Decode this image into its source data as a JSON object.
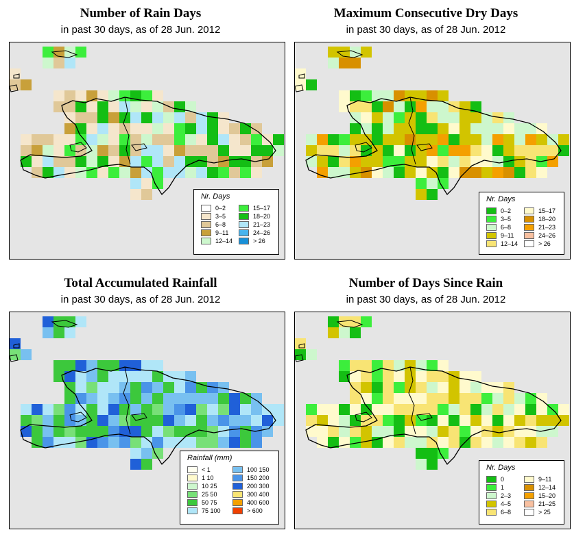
{
  "panels": [
    {
      "id": "rain-days",
      "title": "Number of Rain Days",
      "subtitle": "in past 30 days, as of  28 Jun. 2012",
      "legend_title": "Nr. Days",
      "legend": [
        {
          "label": "0–2",
          "color": "#ffffff"
        },
        {
          "label": "3–5",
          "color": "#f5e6cc"
        },
        {
          "label": "6–8",
          "color": "#e0c898"
        },
        {
          "label": "9–11",
          "color": "#c8a03a"
        },
        {
          "label": "12–14",
          "color": "#cdf7cd"
        },
        {
          "label": "15–17",
          "color": "#3cee3c"
        },
        {
          "label": "18–20",
          "color": "#14be14"
        },
        {
          "label": "21–23",
          "color": "#b0e6f8"
        },
        {
          "label": "24–26",
          "color": "#48b4ee"
        },
        {
          "label": "> 26",
          "color": "#1890d8"
        }
      ]
    },
    {
      "id": "dry-days",
      "title": "Maximum Consecutive Dry Days",
      "subtitle": "in past 30 days, as of  28 Jun. 2012",
      "legend_title": "Nr. Days",
      "legend": [
        {
          "label": "0–2",
          "color": "#14be14"
        },
        {
          "label": "3–5",
          "color": "#3cee3c"
        },
        {
          "label": "6–8",
          "color": "#cdf7cd"
        },
        {
          "label": "9–11",
          "color": "#d2c400"
        },
        {
          "label": "12–14",
          "color": "#f8e474"
        },
        {
          "label": "15–17",
          "color": "#fffacd"
        },
        {
          "label": "18–20",
          "color": "#d89000"
        },
        {
          "label": "21–23",
          "color": "#f4a000"
        },
        {
          "label": "24–26",
          "color": "#f8c0a0"
        },
        {
          "label": "> 26",
          "color": "#ffffff"
        }
      ]
    },
    {
      "id": "rainfall",
      "title": "Total Accumulated Rainfall",
      "subtitle": "in past 30 days, as of  28 Jun. 2012",
      "legend_title": "Rainfall (mm)",
      "legend": [
        {
          "label": "< 1",
          "color": "#fffff0"
        },
        {
          "label": "1    10",
          "color": "#fffacd"
        },
        {
          "label": "10    25",
          "color": "#cdf7cd"
        },
        {
          "label": "25    50",
          "color": "#78e078"
        },
        {
          "label": "50    75",
          "color": "#3cc83c"
        },
        {
          "label": "75   100",
          "color": "#b0e6f8"
        },
        {
          "label": "100   150",
          "color": "#78c0f0"
        },
        {
          "label": "150   200",
          "color": "#4a94e8"
        },
        {
          "label": "200   300",
          "color": "#2060d8"
        },
        {
          "label": "300   400",
          "color": "#f8e474"
        },
        {
          "label": "400   600",
          "color": "#f4a000"
        },
        {
          "label": "> 600",
          "color": "#f04000"
        }
      ]
    },
    {
      "id": "days-since-rain",
      "title": "Number of Days Since Rain",
      "subtitle": "in past 30 days, as of  28 Jun. 2012",
      "legend_title": "Nr. Days",
      "legend": [
        {
          "label": "0",
          "color": "#14be14"
        },
        {
          "label": "1",
          "color": "#3cee3c"
        },
        {
          "label": "2–3",
          "color": "#cdf7cd"
        },
        {
          "label": "4–5",
          "color": "#d2c400"
        },
        {
          "label": "6–8",
          "color": "#f8e474"
        },
        {
          "label": "9–11",
          "color": "#fffacd"
        },
        {
          "label": "12–14",
          "color": "#d89000"
        },
        {
          "label": "15–20",
          "color": "#f4a000"
        },
        {
          "label": "21–25",
          "color": "#f8c0a0"
        },
        {
          "label": "> 25",
          "color": "#ffffff"
        }
      ]
    }
  ]
}
